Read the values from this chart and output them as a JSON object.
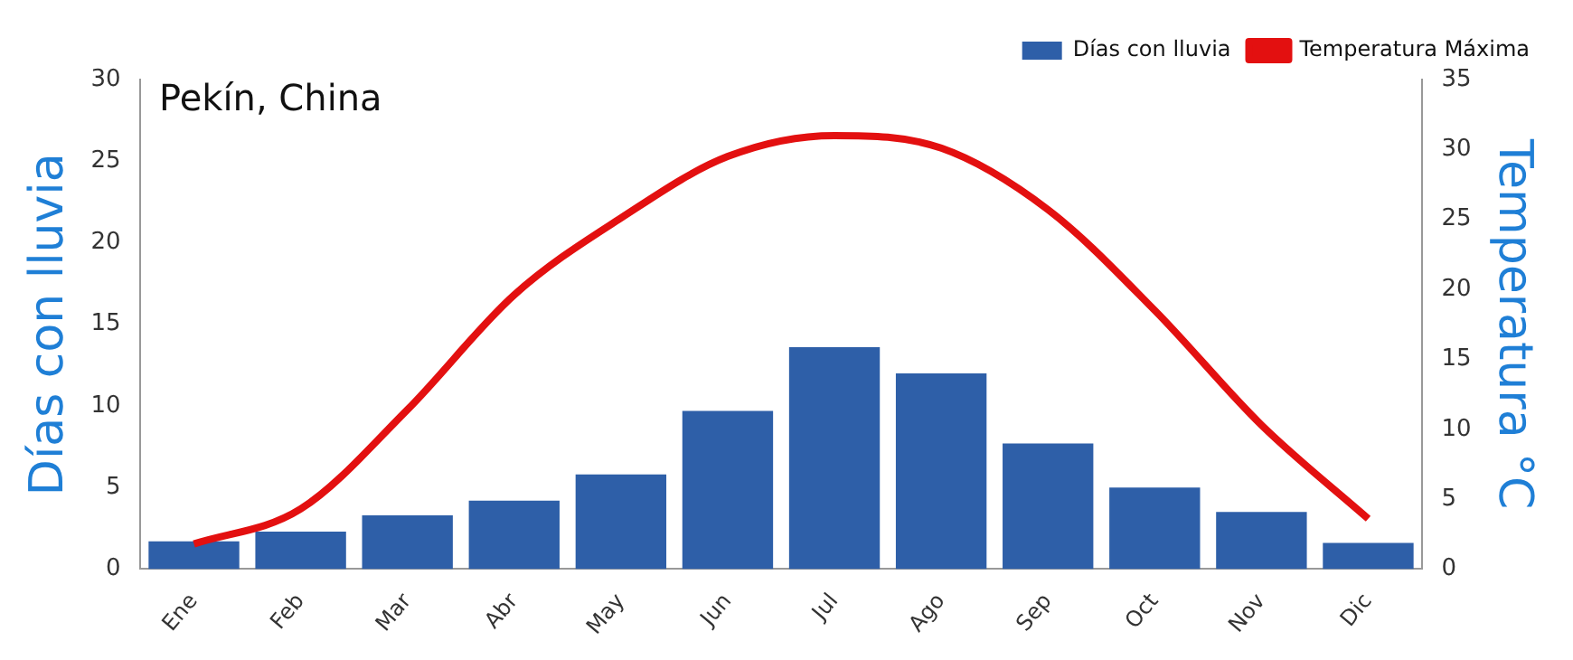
{
  "chart_data": {
    "type": "bar",
    "title": "Pekín, China",
    "ylabel": "Días con lluvia",
    "y2label": "Temperatura °C",
    "categories": [
      "Ene",
      "Feb",
      "Mar",
      "Abr",
      "May",
      "Jun",
      "Jul",
      "Ago",
      "Sep",
      "Oct",
      "Nov",
      "Dic"
    ],
    "series": [
      {
        "name": "Días con lluvia",
        "color": "#2e5fa8",
        "values": [
          1.7,
          2.3,
          3.3,
          4.2,
          5.8,
          9.7,
          13.6,
          12.0,
          7.7,
          5.0,
          3.5,
          1.6
        ]
      },
      {
        "name": "Temperatura Máxima",
        "type": "line",
        "axis": "y2",
        "color": "#e31010",
        "values": [
          1.8,
          4.3,
          11.4,
          19.6,
          25.1,
          29.5,
          31.0,
          30.1,
          25.7,
          18.5,
          10.3,
          3.6
        ]
      }
    ],
    "ylim": [
      0,
      30
    ],
    "yticks": [
      0,
      5,
      10,
      15,
      20,
      25,
      30
    ],
    "y2lim": [
      0,
      35
    ],
    "y2ticks": [
      0,
      5,
      10,
      15,
      20,
      25,
      30,
      35
    ],
    "grid": false,
    "legend": "top right",
    "marker": "none",
    "line_style": "solid"
  }
}
